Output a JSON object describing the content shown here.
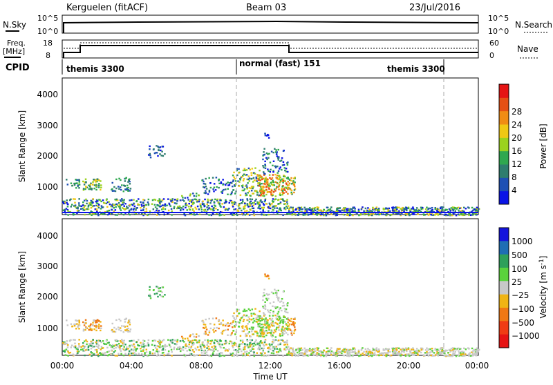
{
  "header": {
    "station": "Kerguelen (fitACF)",
    "beam": "Beam 03",
    "date": "23/Jul/2016"
  },
  "top_panels": {
    "nsky_label": "N.Sky",
    "nsky_ticks": [
      "10^5",
      "10^0"
    ],
    "nsearch_label": "N.Search",
    "nsearch_ticks": [
      "10^5",
      "10^0"
    ],
    "freq_label": "Freq.",
    "freq_unit": "[MHz]",
    "freq_ticks": [
      "18",
      "8"
    ],
    "nave_label": "Nave",
    "nave_ticks": [
      "60",
      "0"
    ],
    "cpid_label": "CPID",
    "cpid_segments": [
      {
        "label": "themis 3300",
        "start_h": 0,
        "end_h": 10
      },
      {
        "label": "normal (fast) 151",
        "start_h": 10,
        "end_h": 22
      },
      {
        "label": "themis 3300",
        "start_h": 22,
        "end_h": 24
      }
    ]
  },
  "chart_data": [
    {
      "type": "heatmap",
      "name": "power",
      "ylabel": "Slant Range [km]",
      "yticks": [
        "1000",
        "2000",
        "3000",
        "4000"
      ],
      "ylim": [
        200,
        4500
      ],
      "colorbar_label": "Power [dB]",
      "colorbar_ticks": [
        "4",
        "8",
        "12",
        "16",
        "20",
        "24",
        "28"
      ],
      "colors": [
        "#0a14e6",
        "#1e50b4",
        "#2e7d6e",
        "#2fa84f",
        "#9bd21e",
        "#f0c814",
        "#f08c14",
        "#e65014",
        "#e61414"
      ]
    },
    {
      "type": "heatmap",
      "name": "velocity",
      "ylabel": "Slant Range [km]",
      "yticks": [
        "1000",
        "2000",
        "3000",
        "4000"
      ],
      "ylim": [
        200,
        4500
      ],
      "colorbar_label": "Velocity [m s",
      "colorbar_unit_sup": "-1",
      "colorbar_unit_close": "]",
      "colorbar_ticks": [
        "1000",
        "500",
        "100",
        "25",
        "−25",
        "−100",
        "−500",
        "−1000"
      ],
      "colors": [
        "#1414dc",
        "#1e6eb4",
        "#2ea05a",
        "#5ad23c",
        "#c8c8c8",
        "#f0b414",
        "#f07814",
        "#f03c14",
        "#e61414"
      ]
    }
  ],
  "x_axis": {
    "ticks": [
      "00:00",
      "04:00",
      "08:00",
      "12:00",
      "16:00",
      "20:00",
      "00:00"
    ],
    "label": "Time UT"
  }
}
